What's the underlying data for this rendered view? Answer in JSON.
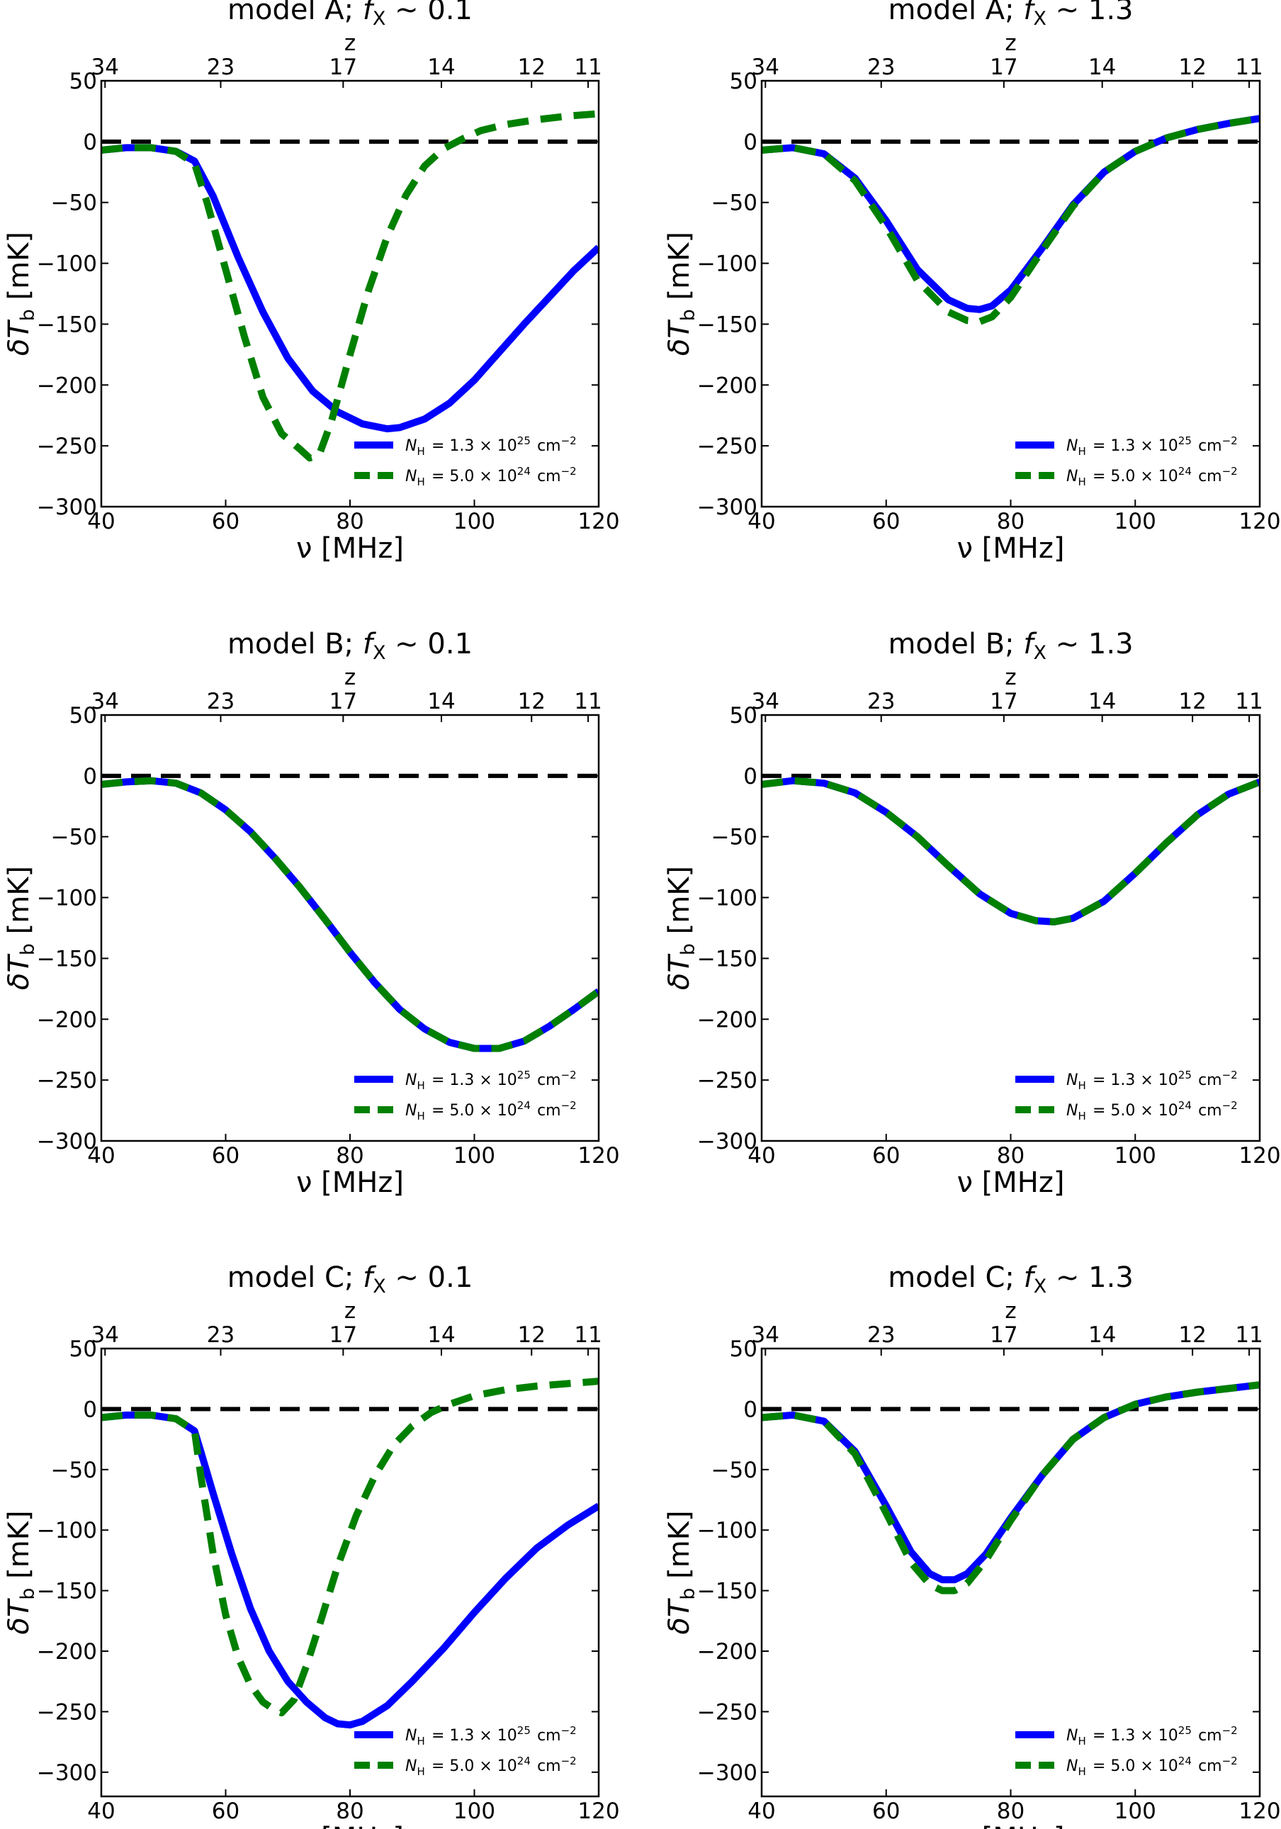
{
  "colors": {
    "series_1": "#0000ff",
    "series_2": "#008000",
    "zero_line": "#000000"
  },
  "chart_data": [
    {
      "type": "line",
      "title_prefix": "model A;",
      "title_fx": "f",
      "title_fx_sub": "X",
      "title_suffix": "~ 0.1",
      "xlabel": "ν [MHz]",
      "ylabel": "δT",
      "ylabel_sub": "b",
      "ylabel_unit": "[mK]",
      "top_axis_label": "z",
      "xlim": [
        40,
        120
      ],
      "ylim": [
        -300,
        50
      ],
      "x_ticks": [
        40,
        60,
        80,
        100,
        120
      ],
      "y_ticks": [
        50,
        0,
        -50,
        -100,
        -150,
        -200,
        -250,
        -300
      ],
      "top_ticks": [
        {
          "label": "34",
          "x": 40.6
        },
        {
          "label": "23",
          "x": 59.2
        },
        {
          "label": "17",
          "x": 78.9
        },
        {
          "label": "14",
          "x": 94.7
        },
        {
          "label": "12",
          "x": 109.2
        },
        {
          "label": "11",
          "x": 118.3
        }
      ],
      "legend_position": "lower-right",
      "series": [
        {
          "name": "N_H = 1.3 × 10^25 cm^-2",
          "style": "solid",
          "x": [
            40,
            44,
            48,
            52,
            55,
            58,
            62,
            66,
            70,
            74,
            78,
            82,
            86,
            88,
            92,
            96,
            100,
            104,
            108,
            112,
            116,
            120
          ],
          "y": [
            -7,
            -5,
            -5,
            -8,
            -16,
            -45,
            -95,
            -140,
            -178,
            -205,
            -222,
            -232,
            -236,
            -235,
            -228,
            -215,
            -196,
            -173,
            -150,
            -128,
            -106,
            -87
          ]
        },
        {
          "name": "N_H = 5.0 × 10^24 cm^-2",
          "style": "dashed",
          "x": [
            40,
            44,
            48,
            52,
            55,
            57,
            60,
            63,
            66,
            69,
            72,
            73.5,
            75,
            77,
            80,
            83,
            86,
            89,
            92,
            95,
            98,
            101,
            105,
            110,
            115,
            120
          ],
          "y": [
            -7,
            -5,
            -5,
            -8,
            -18,
            -50,
            -105,
            -160,
            -210,
            -240,
            -253,
            -260,
            -258,
            -230,
            -175,
            -122,
            -78,
            -44,
            -20,
            -6,
            2,
            9,
            14,
            18,
            21,
            23
          ]
        }
      ]
    },
    {
      "type": "line",
      "title_prefix": "model A;",
      "title_fx": "f",
      "title_fx_sub": "X",
      "title_suffix": "~ 1.3",
      "xlabel": "ν [MHz]",
      "ylabel": "δT",
      "ylabel_sub": "b",
      "ylabel_unit": "[mK]",
      "top_axis_label": "z",
      "xlim": [
        40,
        120
      ],
      "ylim": [
        -300,
        50
      ],
      "x_ticks": [
        40,
        60,
        80,
        100,
        120
      ],
      "y_ticks": [
        50,
        0,
        -50,
        -100,
        -150,
        -200,
        -250,
        -300
      ],
      "top_ticks": [
        {
          "label": "34",
          "x": 40.6
        },
        {
          "label": "23",
          "x": 59.2
        },
        {
          "label": "17",
          "x": 78.9
        },
        {
          "label": "14",
          "x": 94.7
        },
        {
          "label": "12",
          "x": 109.2
        },
        {
          "label": "11",
          "x": 118.3
        }
      ],
      "legend_position": "lower-right",
      "series": [
        {
          "name": "N_H = 1.3 × 10^25 cm^-2",
          "style": "solid",
          "x": [
            40,
            45,
            50,
            55,
            60,
            65,
            70,
            73,
            75,
            77,
            80,
            85,
            90,
            95,
            100,
            105,
            110,
            115,
            120
          ],
          "y": [
            -7,
            -5,
            -10,
            -30,
            -65,
            -105,
            -130,
            -137,
            -138,
            -135,
            -122,
            -88,
            -52,
            -25,
            -8,
            3,
            10,
            15,
            19
          ]
        },
        {
          "name": "N_H = 5.0 × 10^24 cm^-2",
          "style": "dashed",
          "x": [
            40,
            45,
            50,
            55,
            60,
            65,
            70,
            73,
            75,
            77,
            80,
            85,
            90,
            95,
            100,
            105,
            110,
            115,
            120
          ],
          "y": [
            -7,
            -5,
            -10,
            -32,
            -70,
            -114,
            -140,
            -147,
            -148,
            -144,
            -128,
            -90,
            -53,
            -25,
            -8,
            3,
            10,
            15,
            19
          ]
        }
      ]
    },
    {
      "type": "line",
      "title_prefix": "model B;",
      "title_fx": "f",
      "title_fx_sub": "X",
      "title_suffix": "~ 0.1",
      "xlabel": "ν [MHz]",
      "ylabel": "δT",
      "ylabel_sub": "b",
      "ylabel_unit": "[mK]",
      "top_axis_label": "z",
      "xlim": [
        40,
        120
      ],
      "ylim": [
        -300,
        50
      ],
      "x_ticks": [
        40,
        60,
        80,
        100,
        120
      ],
      "y_ticks": [
        50,
        0,
        -50,
        -100,
        -150,
        -200,
        -250,
        -300
      ],
      "top_ticks": [
        {
          "label": "34",
          "x": 40.6
        },
        {
          "label": "23",
          "x": 59.2
        },
        {
          "label": "17",
          "x": 78.9
        },
        {
          "label": "14",
          "x": 94.7
        },
        {
          "label": "12",
          "x": 109.2
        },
        {
          "label": "11",
          "x": 118.3
        }
      ],
      "legend_position": "lower-right",
      "series": [
        {
          "name": "N_H = 1.3 × 10^25 cm^-2",
          "style": "solid",
          "x": [
            40,
            44,
            48,
            52,
            56,
            60,
            64,
            68,
            72,
            76,
            80,
            84,
            88,
            92,
            96,
            100,
            104,
            108,
            112,
            116,
            120
          ],
          "y": [
            -7,
            -5,
            -4,
            -6,
            -14,
            -28,
            -46,
            -68,
            -92,
            -118,
            -145,
            -170,
            -192,
            -208,
            -219,
            -224,
            -224,
            -218,
            -206,
            -192,
            -177
          ]
        },
        {
          "name": "N_H = 5.0 × 10^24 cm^-2",
          "style": "dashed",
          "x": [
            40,
            44,
            48,
            52,
            56,
            60,
            64,
            68,
            72,
            76,
            80,
            84,
            88,
            92,
            96,
            100,
            104,
            108,
            112,
            116,
            120
          ],
          "y": [
            -7,
            -5,
            -4,
            -6,
            -14,
            -28,
            -46,
            -68,
            -92,
            -118,
            -145,
            -170,
            -192,
            -208,
            -219,
            -224,
            -224,
            -218,
            -206,
            -192,
            -177
          ]
        }
      ]
    },
    {
      "type": "line",
      "title_prefix": "model B;",
      "title_fx": "f",
      "title_fx_sub": "X",
      "title_suffix": "~ 1.3",
      "xlabel": "ν [MHz]",
      "ylabel": "δT",
      "ylabel_sub": "b",
      "ylabel_unit": "[mK]",
      "top_axis_label": "z",
      "xlim": [
        40,
        120
      ],
      "ylim": [
        -300,
        50
      ],
      "x_ticks": [
        40,
        60,
        80,
        100,
        120
      ],
      "y_ticks": [
        50,
        0,
        -50,
        -100,
        -150,
        -200,
        -250,
        -300
      ],
      "top_ticks": [
        {
          "label": "34",
          "x": 40.6
        },
        {
          "label": "23",
          "x": 59.2
        },
        {
          "label": "17",
          "x": 78.9
        },
        {
          "label": "14",
          "x": 94.7
        },
        {
          "label": "12",
          "x": 109.2
        },
        {
          "label": "11",
          "x": 118.3
        }
      ],
      "legend_position": "lower-right",
      "series": [
        {
          "name": "N_H = 1.3 × 10^25 cm^-2",
          "style": "solid",
          "x": [
            40,
            45,
            50,
            55,
            60,
            65,
            70,
            75,
            80,
            84,
            87,
            90,
            95,
            100,
            105,
            110,
            115,
            120
          ],
          "y": [
            -7,
            -4,
            -6,
            -14,
            -30,
            -50,
            -74,
            -97,
            -113,
            -119,
            -120,
            -117,
            -103,
            -80,
            -55,
            -32,
            -15,
            -5
          ]
        },
        {
          "name": "N_H = 5.0 × 10^24 cm^-2",
          "style": "dashed",
          "x": [
            40,
            45,
            50,
            55,
            60,
            65,
            70,
            75,
            80,
            84,
            87,
            90,
            95,
            100,
            105,
            110,
            115,
            120
          ],
          "y": [
            -7,
            -4,
            -6,
            -14,
            -30,
            -50,
            -74,
            -97,
            -113,
            -119,
            -120,
            -117,
            -103,
            -80,
            -55,
            -32,
            -15,
            -5
          ]
        }
      ]
    },
    {
      "type": "line",
      "title_prefix": "model C;",
      "title_fx": "f",
      "title_fx_sub": "X",
      "title_suffix": "~ 0.1",
      "xlabel": "ν [MHz]",
      "ylabel": "δT",
      "ylabel_sub": "b",
      "ylabel_unit": "[mK]",
      "top_axis_label": "z",
      "xlim": [
        40,
        120
      ],
      "ylim": [
        -320,
        50
      ],
      "x_ticks": [
        40,
        60,
        80,
        100,
        120
      ],
      "y_ticks": [
        50,
        0,
        -50,
        -100,
        -150,
        -200,
        -250,
        -300
      ],
      "top_ticks": [
        {
          "label": "34",
          "x": 40.6
        },
        {
          "label": "23",
          "x": 59.2
        },
        {
          "label": "17",
          "x": 78.9
        },
        {
          "label": "14",
          "x": 94.7
        },
        {
          "label": "12",
          "x": 109.2
        },
        {
          "label": "11",
          "x": 118.3
        }
      ],
      "legend_position": "lower-right",
      "series": [
        {
          "name": "N_H = 1.3 × 10^25 cm^-2",
          "style": "solid",
          "x": [
            40,
            44,
            48,
            52,
            55,
            56,
            58,
            61,
            64,
            67,
            70,
            73,
            76,
            78,
            80,
            82,
            86,
            90,
            95,
            100,
            105,
            110,
            115,
            120
          ],
          "y": [
            -7,
            -5,
            -5,
            -8,
            -18,
            -35,
            -70,
            -120,
            -165,
            -200,
            -225,
            -242,
            -255,
            -260,
            -261,
            -258,
            -245,
            -225,
            -198,
            -168,
            -140,
            -115,
            -96,
            -80
          ]
        },
        {
          "name": "N_H = 5.0 × 10^24 cm^-2",
          "style": "dashed",
          "x": [
            40,
            44,
            48,
            52,
            55,
            56,
            58,
            60,
            62,
            64,
            66,
            68,
            69,
            71,
            73,
            75,
            78,
            81,
            84,
            87,
            90,
            93,
            96,
            100,
            105,
            110,
            115,
            120
          ],
          "y": [
            -7,
            -5,
            -5,
            -8,
            -18,
            -55,
            -120,
            -170,
            -205,
            -228,
            -242,
            -249,
            -251,
            -240,
            -212,
            -180,
            -130,
            -88,
            -55,
            -30,
            -14,
            -3,
            4,
            11,
            16,
            19,
            21,
            23
          ]
        }
      ]
    },
    {
      "type": "line",
      "title_prefix": "model C;",
      "title_fx": "f",
      "title_fx_sub": "X",
      "title_suffix": "~ 1.3",
      "xlabel": "ν [MHz]",
      "ylabel": "δT",
      "ylabel_sub": "b",
      "ylabel_unit": "[mK]",
      "top_axis_label": "z",
      "xlim": [
        40,
        120
      ],
      "ylim": [
        -320,
        50
      ],
      "x_ticks": [
        40,
        60,
        80,
        100,
        120
      ],
      "y_ticks": [
        50,
        0,
        -50,
        -100,
        -150,
        -200,
        -250,
        -300
      ],
      "top_ticks": [
        {
          "label": "34",
          "x": 40.6
        },
        {
          "label": "23",
          "x": 59.2
        },
        {
          "label": "17",
          "x": 78.9
        },
        {
          "label": "14",
          "x": 94.7
        },
        {
          "label": "12",
          "x": 109.2
        },
        {
          "label": "11",
          "x": 118.3
        }
      ],
      "legend_position": "lower-right",
      "series": [
        {
          "name": "N_H = 1.3 × 10^25 cm^-2",
          "style": "solid",
          "x": [
            40,
            45,
            50,
            55,
            60,
            64,
            67,
            69,
            71,
            73,
            76,
            80,
            85,
            90,
            95,
            100,
            105,
            110,
            115,
            120
          ],
          "y": [
            -7,
            -5,
            -10,
            -35,
            -80,
            -118,
            -136,
            -141,
            -141,
            -136,
            -120,
            -90,
            -55,
            -25,
            -7,
            4,
            10,
            14,
            17,
            20
          ]
        },
        {
          "name": "N_H = 5.0 × 10^24 cm^-2",
          "style": "dashed",
          "x": [
            40,
            45,
            50,
            55,
            60,
            64,
            67,
            69,
            71,
            73,
            76,
            80,
            85,
            90,
            95,
            100,
            105,
            110,
            115,
            120
          ],
          "y": [
            -7,
            -5,
            -10,
            -37,
            -86,
            -127,
            -145,
            -150,
            -150,
            -144,
            -125,
            -92,
            -55,
            -25,
            -7,
            4,
            10,
            14,
            17,
            20
          ]
        }
      ]
    }
  ]
}
